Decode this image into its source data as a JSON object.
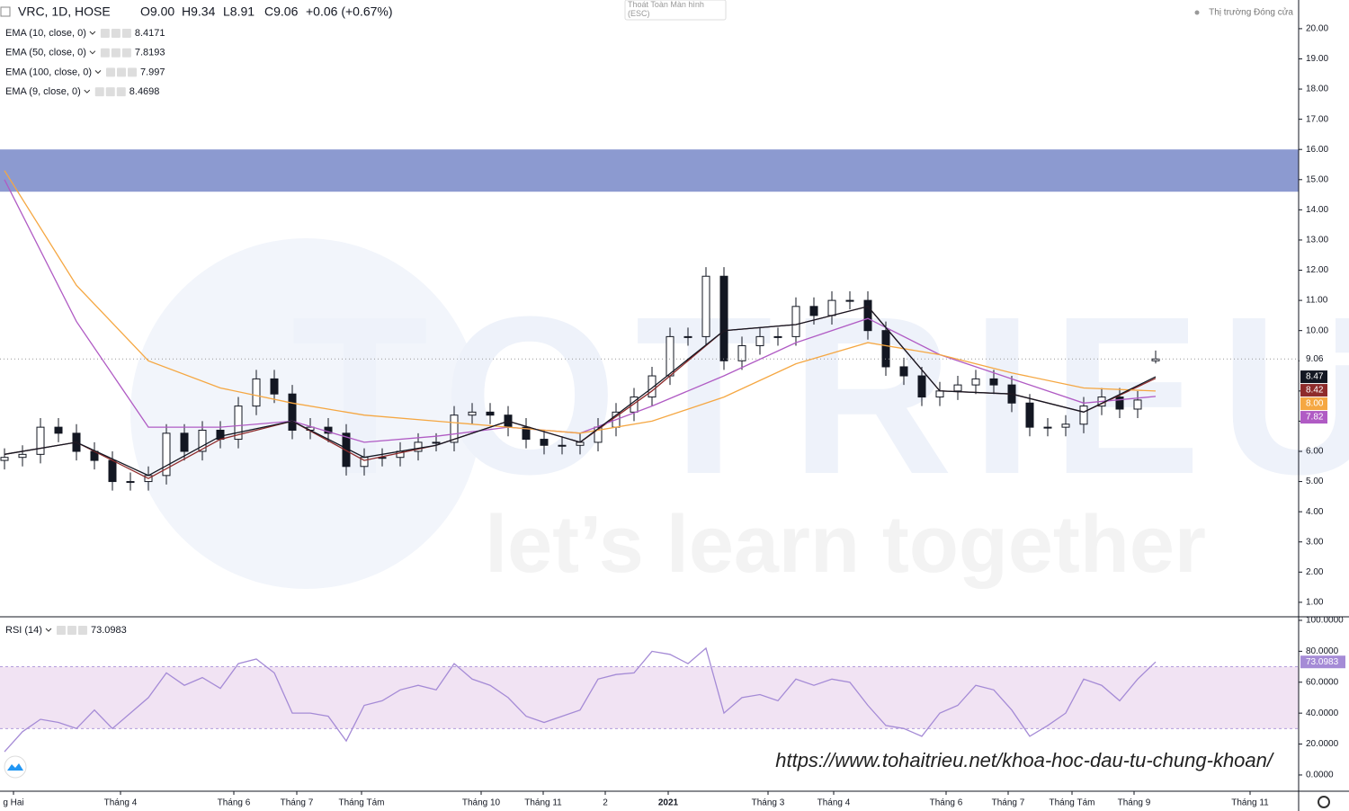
{
  "header": {
    "symbol": "VRC, 1D, HOSE",
    "open": "O9.00",
    "high": "H9.34",
    "low": "L8.91",
    "close": "C9.06",
    "change": "+0.06 (+0.67%)",
    "exit_fullscreen": "Thoát Toàn Màn hình (ESC)",
    "market_status": "Thị trường Đóng cửa"
  },
  "watermark": {
    "brand": "TOTRIEU",
    "slogan": "let’s learn together",
    "url": "https://www.tohaitrieu.net/khoa-hoc-dau-tu-chung-khoan/"
  },
  "chart_data": [
    {
      "type": "candlestick",
      "x": [
        0,
        1,
        2,
        3,
        4,
        5,
        6,
        7,
        8,
        9,
        10,
        11,
        12,
        13,
        14,
        15,
        16,
        17,
        18,
        19,
        20,
        21,
        22,
        23,
        24,
        25,
        26,
        27,
        28,
        29,
        30,
        31,
        32,
        33,
        34,
        35,
        36,
        37,
        38,
        39,
        40,
        41,
        42,
        43,
        44,
        45,
        46,
        47,
        48,
        49,
        50,
        51,
        52,
        53,
        54,
        55,
        56,
        57,
        58,
        59,
        60,
        61,
        62,
        63,
        64
      ],
      "open": [
        5.7,
        5.8,
        5.9,
        6.8,
        6.6,
        6.0,
        5.7,
        5.0,
        5.0,
        5.2,
        6.6,
        6.0,
        6.7,
        6.4,
        7.5,
        8.4,
        7.9,
        6.7,
        6.8,
        6.6,
        5.5,
        5.8,
        5.8,
        6.0,
        6.3,
        6.3,
        7.2,
        7.3,
        7.2,
        6.8,
        6.4,
        6.2,
        6.2,
        6.3,
        6.8,
        7.3,
        7.8,
        8.5,
        9.8,
        9.8,
        11.8,
        9.0,
        9.5,
        9.8,
        9.8,
        10.8,
        10.5,
        11.0,
        11.0,
        10.0,
        8.8,
        8.5,
        7.8,
        8.0,
        8.2,
        8.4,
        8.2,
        7.6,
        6.8,
        6.8,
        6.9,
        7.5,
        7.8,
        7.4,
        9.0
      ],
      "high": [
        6.1,
        6.2,
        7.1,
        7.1,
        6.9,
        6.3,
        6.0,
        5.3,
        5.5,
        6.9,
        6.9,
        7.0,
        7.0,
        7.8,
        8.7,
        8.7,
        8.2,
        7.1,
        7.1,
        6.9,
        6.1,
        6.1,
        6.3,
        6.6,
        6.6,
        7.5,
        7.6,
        7.6,
        7.5,
        7.1,
        6.7,
        6.5,
        6.6,
        7.1,
        7.6,
        8.1,
        8.8,
        10.1,
        10.1,
        12.1,
        12.1,
        9.8,
        10.1,
        10.1,
        11.1,
        11.1,
        11.3,
        11.3,
        11.3,
        10.3,
        9.1,
        8.8,
        8.3,
        8.5,
        8.7,
        8.7,
        8.5,
        7.9,
        7.1,
        7.2,
        7.8,
        8.1,
        8.1,
        8.0,
        9.34
      ],
      "low": [
        5.4,
        5.5,
        5.6,
        6.3,
        5.7,
        5.4,
        4.7,
        4.7,
        4.7,
        4.9,
        5.7,
        5.7,
        6.1,
        6.1,
        7.2,
        7.6,
        6.4,
        6.4,
        6.3,
        5.2,
        5.2,
        5.5,
        5.5,
        5.7,
        6.0,
        6.0,
        6.9,
        6.9,
        6.5,
        6.1,
        5.9,
        5.9,
        5.9,
        6.0,
        6.5,
        7.0,
        7.5,
        8.2,
        9.5,
        9.5,
        8.7,
        8.7,
        9.2,
        9.5,
        9.5,
        10.2,
        10.2,
        10.7,
        9.7,
        8.5,
        8.2,
        7.5,
        7.5,
        7.7,
        7.9,
        7.9,
        7.3,
        6.5,
        6.5,
        6.5,
        6.6,
        7.2,
        7.1,
        7.1,
        8.91
      ],
      "close": [
        5.8,
        5.9,
        6.8,
        6.6,
        6.0,
        5.7,
        5.0,
        5.0,
        5.2,
        6.6,
        6.0,
        6.7,
        6.4,
        7.5,
        8.4,
        7.9,
        6.7,
        6.8,
        6.6,
        5.5,
        5.8,
        5.8,
        6.0,
        6.3,
        6.3,
        7.2,
        7.3,
        7.2,
        6.8,
        6.4,
        6.2,
        6.2,
        6.3,
        6.8,
        7.3,
        7.8,
        8.5,
        9.8,
        9.8,
        11.8,
        9.0,
        9.5,
        9.8,
        9.8,
        10.8,
        10.5,
        11.0,
        11.0,
        10.0,
        8.8,
        8.5,
        7.8,
        8.0,
        8.2,
        8.4,
        8.2,
        7.6,
        6.8,
        6.8,
        6.9,
        7.5,
        7.8,
        7.4,
        7.7,
        9.06
      ],
      "last_price_label": "9.06",
      "up_color": "#ffffff",
      "down_color": "#131722",
      "series": [
        {
          "name": "EMA (10, close, 0)",
          "color": "#8e2b2b",
          "last_label": "8.42",
          "x": [
            0,
            4,
            8,
            12,
            16,
            20,
            24,
            28,
            32,
            36,
            40,
            44,
            48,
            52,
            56,
            60,
            64
          ],
          "values": [
            5.9,
            6.3,
            5.1,
            6.4,
            7.0,
            5.7,
            6.2,
            7.0,
            6.3,
            8.0,
            10.0,
            10.2,
            10.8,
            8.0,
            7.9,
            7.3,
            8.4171
          ]
        },
        {
          "name": "EMA (50, close, 0)",
          "color": "#b05bc4",
          "last_label": "7.82",
          "x": [
            0,
            4,
            8,
            12,
            16,
            20,
            24,
            28,
            32,
            36,
            40,
            44,
            48,
            52,
            56,
            60,
            64
          ],
          "values": [
            15.0,
            10.3,
            6.8,
            6.8,
            7.0,
            6.3,
            6.5,
            6.8,
            6.6,
            7.5,
            8.5,
            9.6,
            10.4,
            9.2,
            8.4,
            7.6,
            7.8193
          ]
        },
        {
          "name": "EMA (100, close, 0)",
          "color": "#f5a742",
          "last_label": "8.00",
          "x": [
            0,
            4,
            8,
            12,
            16,
            20,
            24,
            28,
            32,
            36,
            40,
            44,
            48,
            52,
            56,
            60,
            64
          ],
          "values": [
            15.3,
            11.5,
            9.0,
            8.1,
            7.6,
            7.2,
            7.0,
            6.8,
            6.6,
            7.0,
            7.8,
            8.9,
            9.6,
            9.2,
            8.6,
            8.1,
            7.997
          ]
        },
        {
          "name": "EMA (9, close, 0)",
          "color": "#131722",
          "last_label": "8.47",
          "x": [
            0,
            4,
            8,
            12,
            16,
            20,
            24,
            28,
            32,
            36,
            40,
            44,
            48,
            52,
            56,
            60,
            64
          ],
          "values": [
            5.9,
            6.3,
            5.2,
            6.5,
            7.0,
            5.8,
            6.2,
            7.0,
            6.3,
            8.1,
            10.0,
            10.2,
            10.8,
            8.0,
            7.9,
            7.3,
            8.4698
          ]
        }
      ],
      "zones": [
        {
          "from": 14.6,
          "to": 16.0,
          "color": "#8c9ad0"
        }
      ],
      "xlim": [
        -0.25,
        71.95
      ],
      "xticks": [
        {
          "value": 0.5,
          "label": "g Hai"
        },
        {
          "value": 6.45,
          "label": "Tháng 4"
        },
        {
          "value": 12.75,
          "label": "Tháng 6"
        },
        {
          "value": 16.25,
          "label": "Tháng 7"
        },
        {
          "value": 19.85,
          "label": "Tháng Tám"
        },
        {
          "value": 26.5,
          "label": "Tháng 10"
        },
        {
          "value": 29.95,
          "label": "Tháng 11"
        },
        {
          "value": 33.4,
          "label": "2"
        },
        {
          "value": 36.9,
          "label": "2021"
        },
        {
          "value": 42.45,
          "label": "Tháng 3"
        },
        {
          "value": 46.1,
          "label": "Tháng 4"
        },
        {
          "value": 52.35,
          "label": "Tháng 6"
        },
        {
          "value": 55.8,
          "label": "Tháng 7"
        },
        {
          "value": 59.35,
          "label": "Tháng Tám"
        },
        {
          "value": 62.8,
          "label": "Tháng 9"
        },
        {
          "value": 69.25,
          "label": "Tháng 11"
        }
      ],
      "ylim": [
        0.52,
        20.95
      ],
      "yticks": [
        {
          "value": 1,
          "label": "1.00"
        },
        {
          "value": 2,
          "label": "2.00"
        },
        {
          "value": 3,
          "label": "3.00"
        },
        {
          "value": 4,
          "label": "4.00"
        },
        {
          "value": 5,
          "label": "5.00"
        },
        {
          "value": 6,
          "label": "6.00"
        },
        {
          "value": 7,
          "label": "7.00"
        },
        {
          "value": 8,
          "label": "8.00"
        },
        {
          "value": 9,
          "label": "9.00"
        },
        {
          "value": 10,
          "label": "10.00"
        },
        {
          "value": 11,
          "label": "11.00"
        },
        {
          "value": 12,
          "label": "12.00"
        },
        {
          "value": 13,
          "label": "13.00"
        },
        {
          "value": 14,
          "label": "14.00"
        },
        {
          "value": 15,
          "label": "15.00"
        },
        {
          "value": 16,
          "label": "16.00"
        },
        {
          "value": 17,
          "label": "17.00"
        },
        {
          "value": 18,
          "label": "18.00"
        },
        {
          "value": 19,
          "label": "19.00"
        },
        {
          "value": 20,
          "label": "20.00"
        }
      ]
    },
    {
      "type": "line",
      "series": [
        {
          "name": "RSI (14)",
          "color": "#a58bd6",
          "x": [
            0,
            1,
            2,
            3,
            4,
            5,
            6,
            7,
            8,
            9,
            10,
            11,
            12,
            13,
            14,
            15,
            16,
            17,
            18,
            19,
            20,
            21,
            22,
            23,
            24,
            25,
            26,
            27,
            28,
            29,
            30,
            31,
            32,
            33,
            34,
            35,
            36,
            37,
            38,
            39,
            40,
            41,
            42,
            43,
            44,
            45,
            46,
            47,
            48,
            49,
            50,
            51,
            52,
            53,
            54,
            55,
            56,
            57,
            58,
            59,
            60,
            61,
            62,
            63,
            64
          ],
          "values": [
            15,
            28,
            36,
            34,
            30,
            42,
            30,
            40,
            50,
            66,
            58,
            63,
            56,
            72,
            75,
            66,
            40,
            40,
            38,
            22,
            45,
            48,
            55,
            58,
            55,
            72,
            62,
            58,
            50,
            38,
            34,
            38,
            42,
            62,
            65,
            66,
            80,
            78,
            72,
            82,
            40,
            50,
            52,
            48,
            62,
            58,
            62,
            60,
            45,
            32,
            30,
            25,
            40,
            45,
            58,
            55,
            42,
            25,
            32,
            40,
            62,
            58,
            48,
            62,
            73.0983
          ]
        }
      ],
      "bands": [
        30,
        70
      ],
      "band_color": "#f1e3f3",
      "xlim": [
        -0.25,
        71.95
      ],
      "ylim": [
        -10.5,
        102.3
      ],
      "yticks": [
        {
          "value": 0,
          "label": "0.0000"
        },
        {
          "value": 20,
          "label": "20.0000"
        },
        {
          "value": 40,
          "label": "40.0000"
        },
        {
          "value": 60,
          "label": "60.0000"
        },
        {
          "value": 80,
          "label": "80.0000"
        },
        {
          "value": 100,
          "label": "100.0000"
        }
      ]
    }
  ]
}
